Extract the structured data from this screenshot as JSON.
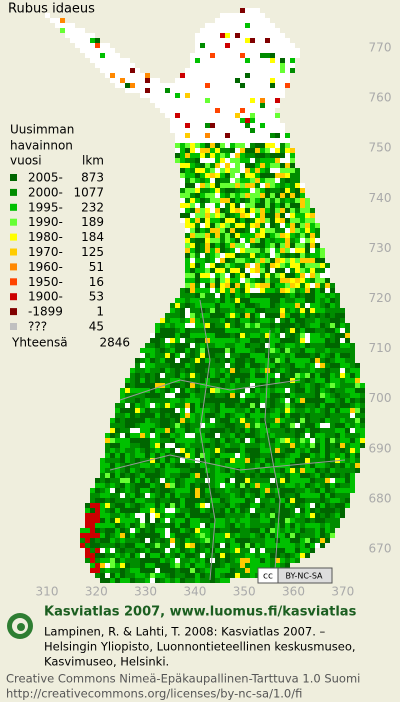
{
  "title": "Rubus idaeus",
  "legend": {
    "heading": [
      "Uusimman",
      "havainnon"
    ],
    "col_year": "vuosi",
    "col_count": "lkm",
    "entries": [
      {
        "label": "2005-",
        "count": 873,
        "color": "#006600"
      },
      {
        "label": "2000-",
        "count": 1077,
        "color": "#008c00"
      },
      {
        "label": "1995-",
        "count": 232,
        "color": "#00c000"
      },
      {
        "label": "1990-",
        "count": 189,
        "color": "#66ff33"
      },
      {
        "label": "1980-",
        "count": 184,
        "color": "#ffff00"
      },
      {
        "label": "1970-",
        "count": 125,
        "color": "#ffcc00"
      },
      {
        "label": "1960-",
        "count": 51,
        "color": "#ff8800"
      },
      {
        "label": "1950-",
        "count": 16,
        "color": "#ff4400"
      },
      {
        "label": "1900-",
        "count": 53,
        "color": "#cc0000"
      },
      {
        "label": "-1899",
        "count": 1,
        "color": "#800000"
      },
      {
        "label": "???",
        "count": 45,
        "color": "#c0c0c0"
      }
    ],
    "total_label": "Yhteensä",
    "total": 2846
  },
  "axes": {
    "y_ticks": [
      770,
      760,
      750,
      740,
      730,
      720,
      710,
      700,
      690,
      680,
      670
    ],
    "x_ticks": [
      310,
      320,
      330,
      340,
      350,
      360,
      370
    ]
  },
  "badge": {
    "cc": "cc",
    "license": "BY-NC-SA"
  },
  "footer": {
    "site": "Kasviatlas 2007, www.luomus.fi/kasviatlas",
    "citation": [
      "Lampinen, R. & Lahti, T. 2008: Kasviatlas 2007. –",
      "Helsingin Yliopisto, Luonnontieteellinen keskusmuseo,",
      "Kasvimuseo, Helsinki."
    ],
    "license": "Creative Commons Nimeä-Epäkaupallinen-Tarttuva 1.0 Suomi",
    "url": "http://creativecommons.org/licenses/by-nc-sa/1.0/fi"
  }
}
